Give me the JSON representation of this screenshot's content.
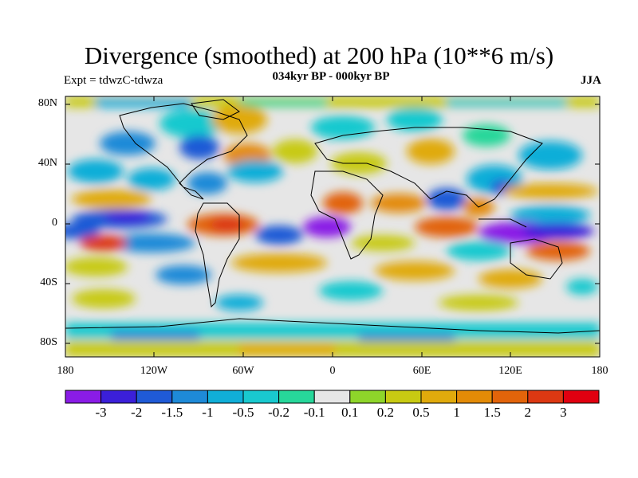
{
  "title": "Divergence (smoothed) at 200 hPa (10**6 m/s)",
  "experiment": "Expt = tdwzC-tdwza",
  "subtitle": "034kyr BP - 000kyr BP",
  "season": "JJA",
  "lat_ticks": [
    "80N",
    "40N",
    "0",
    "40S",
    "80S"
  ],
  "lon_ticks": [
    "180",
    "120W",
    "60W",
    "0",
    "60E",
    "120E",
    "180"
  ],
  "colorbar": {
    "labels": [
      "-3",
      "-2",
      "-1.5",
      "-1",
      "-0.5",
      "-0.2",
      "-0.1",
      "0.1",
      "0.2",
      "0.5",
      "1",
      "1.5",
      "2",
      "3"
    ],
    "colors": [
      "#8a1ce6",
      "#3b1fd9",
      "#1f5ad6",
      "#1e8ad8",
      "#10aed8",
      "#19c9cf",
      "#27d79a",
      "#e6e6e6",
      "#8ed52a",
      "#c8ca12",
      "#e0aa0c",
      "#e38b07",
      "#e2640a",
      "#dc3812",
      "#e00010"
    ]
  }
}
